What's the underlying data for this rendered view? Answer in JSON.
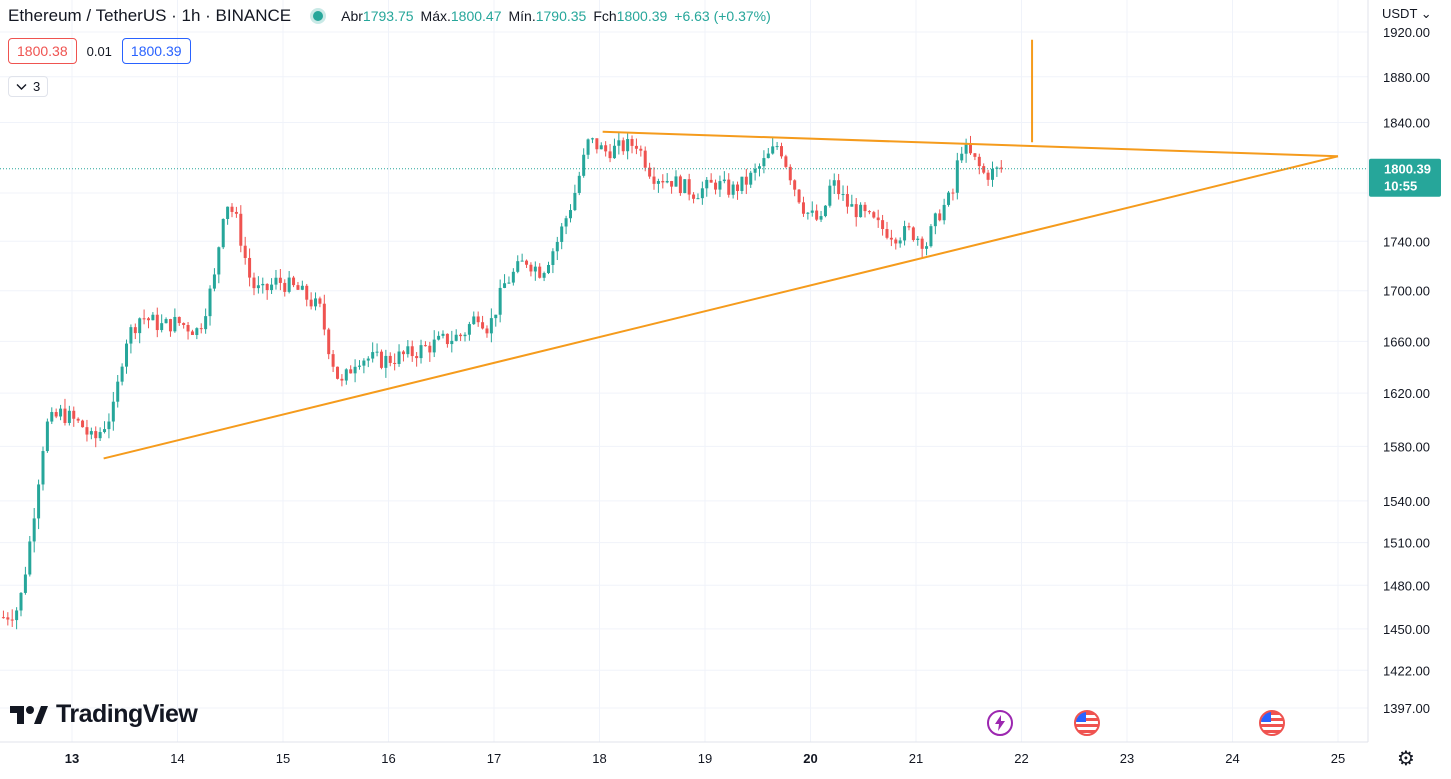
{
  "header": {
    "symbol_title": "Ethereum / TetherUS · 1h · BINANCE",
    "ohlc": [
      {
        "label": "Abr",
        "value": "1793.75"
      },
      {
        "label": "Máx.",
        "value": "1800.47"
      },
      {
        "label": "Mín.",
        "value": "1790.35"
      },
      {
        "label": "Fch",
        "value": "1800.39"
      }
    ],
    "change": "+6.63 (+0.37%)"
  },
  "quote": {
    "bid": "1800.38",
    "spread": "0.01",
    "ask": "1800.39"
  },
  "indicators_toggle": {
    "count": "3"
  },
  "currency_menu": "USDT",
  "last_price_tag": {
    "price": "1800.39",
    "countdown": "10:55"
  },
  "logo_text": "TradingView",
  "colors": {
    "up": "#26a69a",
    "down": "#ef5350",
    "drawing": "#f59b1c",
    "grid": "#f0f3fa",
    "axis_text": "#131722",
    "price_tag": "#26a69a"
  },
  "events": [
    {
      "icon": "lightning-icon",
      "color": "#9c27b0",
      "day": 21.8
    },
    {
      "icon": "us-flag-icon",
      "color": "#ef5350",
      "day": 22.62
    },
    {
      "icon": "us-flag-icon",
      "color": "#ef5350",
      "day": 24.37
    }
  ],
  "chart_data": {
    "type": "candlestick",
    "timeframe": "1h",
    "y_ticks": [
      1397,
      1422,
      1450,
      1480,
      1510,
      1540,
      1580,
      1620,
      1660,
      1700,
      1740,
      1780,
      1840,
      1880,
      1920
    ],
    "y_tick_labels": [
      "1397.00",
      "1422.00",
      "1450.00",
      "1480.00",
      "1510.00",
      "1540.00",
      "1580.00",
      "1620.00",
      "1660.00",
      "1700.00",
      "1740.00",
      "",
      "1840.00",
      "1880.00",
      "1920.00"
    ],
    "x_ticks": [
      {
        "day": 13,
        "label": "13",
        "bold": true
      },
      {
        "day": 14,
        "label": "14"
      },
      {
        "day": 15,
        "label": "15"
      },
      {
        "day": 16,
        "label": "16"
      },
      {
        "day": 17,
        "label": "17"
      },
      {
        "day": 18,
        "label": "18"
      },
      {
        "day": 19,
        "label": "19"
      },
      {
        "day": 20,
        "label": "20",
        "bold": true
      },
      {
        "day": 21,
        "label": "21"
      },
      {
        "day": 22,
        "label": "22"
      },
      {
        "day": 23,
        "label": "23"
      },
      {
        "day": 24,
        "label": "24"
      },
      {
        "day": 25,
        "label": "25"
      }
    ],
    "last_price": 1800.39,
    "close_anchors": [
      [
        12.35,
        1458
      ],
      [
        12.5,
        1465
      ],
      [
        12.6,
        1510
      ],
      [
        12.75,
        1595
      ],
      [
        12.9,
        1605
      ],
      [
        13.1,
        1595
      ],
      [
        13.2,
        1583
      ],
      [
        13.4,
        1608
      ],
      [
        13.5,
        1660
      ],
      [
        13.65,
        1680
      ],
      [
        13.85,
        1672
      ],
      [
        14.0,
        1675
      ],
      [
        14.2,
        1668
      ],
      [
        14.35,
        1710
      ],
      [
        14.45,
        1775
      ],
      [
        14.55,
        1760
      ],
      [
        14.7,
        1705
      ],
      [
        14.8,
        1698
      ],
      [
        14.95,
        1708
      ],
      [
        15.15,
        1700
      ],
      [
        15.35,
        1685
      ],
      [
        15.45,
        1650
      ],
      [
        15.55,
        1625
      ],
      [
        15.7,
        1648
      ],
      [
        15.95,
        1645
      ],
      [
        16.2,
        1650
      ],
      [
        16.5,
        1660
      ],
      [
        16.7,
        1665
      ],
      [
        16.85,
        1682
      ],
      [
        16.95,
        1670
      ],
      [
        17.1,
        1705
      ],
      [
        17.3,
        1725
      ],
      [
        17.45,
        1715
      ],
      [
        17.6,
        1740
      ],
      [
        17.75,
        1775
      ],
      [
        17.9,
        1825
      ],
      [
        18.05,
        1815
      ],
      [
        18.35,
        1822
      ],
      [
        18.5,
        1795
      ],
      [
        18.7,
        1790
      ],
      [
        18.9,
        1780
      ],
      [
        19.1,
        1788
      ],
      [
        19.25,
        1782
      ],
      [
        19.4,
        1790
      ],
      [
        19.55,
        1805
      ],
      [
        19.7,
        1822
      ],
      [
        19.85,
        1785
      ],
      [
        19.95,
        1765
      ],
      [
        20.1,
        1755
      ],
      [
        20.2,
        1790
      ],
      [
        20.35,
        1770
      ],
      [
        20.5,
        1762
      ],
      [
        20.65,
        1752
      ],
      [
        20.8,
        1745
      ],
      [
        20.95,
        1748
      ],
      [
        21.1,
        1738
      ],
      [
        21.2,
        1760
      ],
      [
        21.35,
        1780
      ],
      [
        21.42,
        1820
      ],
      [
        21.55,
        1808
      ],
      [
        21.65,
        1795
      ],
      [
        21.82,
        1800.39
      ]
    ],
    "drawings": [
      {
        "name": "support-trendline",
        "from": [
          13.3,
          1571
        ],
        "to": [
          25.0,
          1811
        ]
      },
      {
        "name": "resistance-trendline",
        "from": [
          18.03,
          1832
        ],
        "to": [
          25.0,
          1811
        ]
      },
      {
        "name": "vertical-marker",
        "from": [
          22.1,
          1823
        ],
        "to": [
          22.1,
          1913
        ]
      }
    ]
  }
}
